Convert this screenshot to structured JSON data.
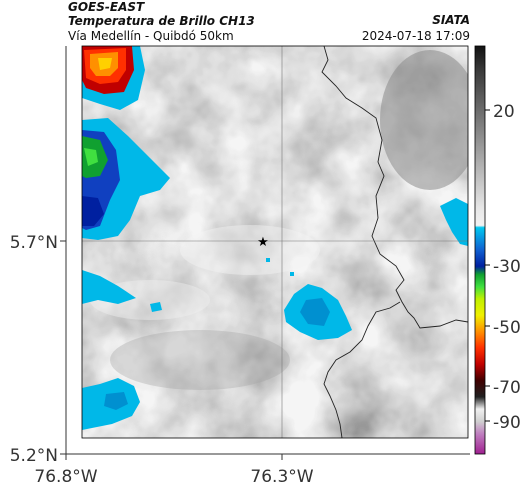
{
  "header": {
    "product": "GOES-EAST",
    "title": "Temperatura de Brillo CH13",
    "subtitle": "Vía Medellín - Quibdó 50km",
    "agency": "SIATA",
    "datetime": "2024-07-18 17:09"
  },
  "map": {
    "lat_labels": [
      "5.7°N",
      "5.2°N"
    ],
    "lon_labels": [
      "76.8°W",
      "76.3°W"
    ],
    "marker": "star-marker"
  },
  "colorbar": {
    "tick_labels": [
      "20",
      "-30",
      "-50",
      "-70",
      "-90"
    ],
    "colors": {
      "warm_gray_top": "#1a1a1a",
      "light_gray": "#e8e8e8",
      "cyan": "#00b0e8",
      "blue": "#1040c0",
      "green": "#20c020",
      "yellow": "#f0f000",
      "orange": "#ff7000",
      "red": "#e00000",
      "dark_red": "#600000",
      "magenta": "#b030a0"
    }
  }
}
